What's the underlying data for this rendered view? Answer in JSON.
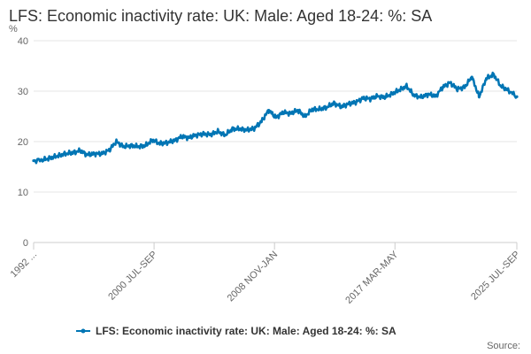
{
  "title": "LFS: Economic inactivity rate: UK: Male: Aged 18-24: %: SA",
  "source_label": "Source:",
  "chart_data": {
    "type": "line",
    "title": "LFS: Economic inactivity rate: UK: Male: Aged 18-24: %: SA",
    "ylabel": "%",
    "xlabel": "",
    "ylim": [
      0,
      40
    ],
    "yticks": [
      0,
      10,
      20,
      30,
      40
    ],
    "xtick_labels": [
      "1992 ...",
      "2000 JUL-SEP",
      "2008 NOV-JAN",
      "2017 MAR-MAY",
      "2025 JUL-SEP"
    ],
    "xtick_years": [
      1992.3,
      2000.6,
      2008.9,
      2017.2,
      2025.6
    ],
    "x_range": [
      1992.3,
      2025.6
    ],
    "legend": "LFS: Economic inactivity rate: UK: Male: Aged 18-24: %: SA",
    "color": "#0075b4",
    "series": [
      {
        "name": "LFS: Economic inactivity rate: UK: Male: Aged 18-24: %: SA",
        "x": [
          1992.3,
          1993.0,
          1993.5,
          1994.0,
          1994.5,
          1995.0,
          1995.5,
          1996.0,
          1996.5,
          1997.0,
          1997.5,
          1998.0,
          1998.5,
          1999.0,
          1999.5,
          2000.0,
          2000.5,
          2001.0,
          2001.5,
          2002.0,
          2002.5,
          2003.0,
          2003.5,
          2004.0,
          2004.5,
          2005.0,
          2005.5,
          2006.0,
          2006.5,
          2007.0,
          2007.5,
          2008.0,
          2008.5,
          2009.0,
          2009.5,
          2010.0,
          2010.5,
          2011.0,
          2011.5,
          2012.0,
          2012.5,
          2013.0,
          2013.5,
          2014.0,
          2014.5,
          2015.0,
          2015.5,
          2016.0,
          2016.5,
          2017.0,
          2017.5,
          2018.0,
          2018.5,
          2019.0,
          2019.5,
          2020.0,
          2020.5,
          2021.0,
          2021.5,
          2022.0,
          2022.5,
          2023.0,
          2023.5,
          2024.0,
          2024.5,
          2025.0,
          2025.6
        ],
        "y": [
          16.2,
          16.4,
          16.8,
          17.2,
          17.6,
          17.8,
          18.2,
          17.4,
          17.6,
          17.6,
          18.3,
          20.0,
          19.0,
          19.2,
          19.0,
          19.2,
          20.3,
          19.6,
          19.8,
          20.2,
          21.0,
          20.8,
          21.3,
          21.5,
          21.4,
          22.0,
          21.3,
          22.5,
          22.5,
          22.3,
          22.6,
          24.0,
          26.2,
          24.8,
          25.8,
          25.6,
          26.2,
          25.0,
          26.4,
          26.4,
          26.8,
          27.6,
          26.9,
          27.5,
          27.8,
          28.6,
          28.5,
          29.0,
          28.8,
          29.5,
          30.2,
          31.0,
          29.2,
          28.8,
          29.4,
          29.0,
          30.8,
          31.7,
          30.4,
          30.8,
          32.8,
          28.9,
          32.5,
          33.3,
          31.0,
          30.2,
          28.9
        ]
      }
    ]
  }
}
